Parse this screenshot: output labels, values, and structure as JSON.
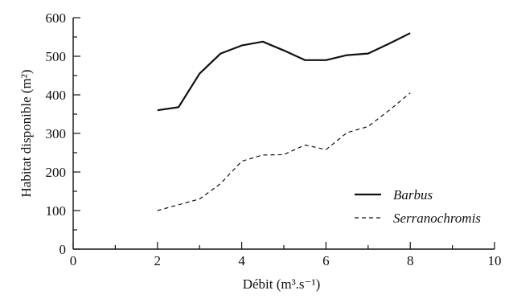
{
  "chart_data": {
    "type": "line",
    "title": "",
    "xlabel": "Débit (m³.s⁻¹)",
    "ylabel": "Habitat disponible (m²)",
    "xlim": [
      0,
      10
    ],
    "ylim": [
      0,
      600
    ],
    "x_ticks": [
      0,
      2,
      4,
      6,
      8,
      10
    ],
    "x_tick_labels": [
      "0",
      "2",
      "4",
      "6",
      "8",
      "10"
    ],
    "y_ticks": [
      0,
      100,
      200,
      300,
      400,
      500,
      600
    ],
    "y_tick_labels": [
      "0",
      "100",
      "200",
      "300",
      "400",
      "500",
      "600"
    ],
    "grid": false,
    "legend_position": "lower-right",
    "series": [
      {
        "name": "Barbus",
        "style": "solid",
        "color": "#111111",
        "x": [
          2.0,
          2.5,
          3.0,
          3.5,
          4.0,
          4.5,
          5.0,
          5.5,
          6.0,
          6.5,
          7.0,
          7.5,
          8.0
        ],
        "y": [
          360,
          368,
          455,
          507,
          528,
          538,
          515,
          490,
          490,
          503,
          507,
          533,
          560
        ]
      },
      {
        "name": "Serranochromis",
        "style": "dashed",
        "color": "#111111",
        "x": [
          2.0,
          2.5,
          3.0,
          3.5,
          4.0,
          4.5,
          5.0,
          5.5,
          6.0,
          6.5,
          7.0,
          7.5,
          8.0
        ],
        "y": [
          100,
          115,
          130,
          170,
          228,
          244,
          245,
          270,
          258,
          302,
          318,
          360,
          405
        ]
      }
    ]
  }
}
